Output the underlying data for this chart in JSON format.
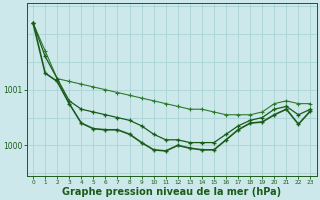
{
  "background_color": "#cce8ea",
  "grid_color": "#aad4d8",
  "line_color_dark": "#1a5c1a",
  "line_color_med": "#2d7a2d",
  "xlabel": "Graphe pression niveau de la mer (hPa)",
  "xlabel_fontsize": 7,
  "ytick_labels": [
    "1000",
    "1001"
  ],
  "ytick_vals": [
    1000.0,
    1001.0
  ],
  "ylim": [
    999.45,
    1002.55
  ],
  "xlim": [
    -0.5,
    23.5
  ],
  "xticks": [
    0,
    1,
    2,
    3,
    4,
    5,
    6,
    7,
    8,
    9,
    10,
    11,
    12,
    13,
    14,
    15,
    16,
    17,
    18,
    19,
    20,
    21,
    22,
    23
  ],
  "hgrid_vals": [
    999.5,
    1000.0,
    1000.5,
    1001.0,
    1001.5,
    1002.0,
    1002.5
  ],
  "series1_x": [
    0,
    1,
    2,
    3,
    4,
    5,
    6,
    7,
    8,
    9,
    10,
    11,
    12,
    13,
    14,
    15,
    16,
    17,
    18,
    19,
    20,
    21,
    22,
    23
  ],
  "series1_y": [
    1002.2,
    1001.7,
    1001.2,
    1001.15,
    1001.1,
    1001.05,
    1001.0,
    1000.95,
    1000.9,
    1000.85,
    1000.8,
    1000.75,
    1000.7,
    1000.65,
    1000.65,
    1000.6,
    1000.55,
    1000.55,
    1000.55,
    1000.6,
    1000.75,
    1000.8,
    1000.75,
    1000.75
  ],
  "series2_x": [
    0,
    1,
    2,
    3,
    4,
    5,
    6,
    7,
    8,
    9,
    10,
    11,
    12,
    13,
    14,
    15,
    16,
    17,
    18,
    19,
    20,
    21,
    22,
    23
  ],
  "series2_y": [
    1002.2,
    1001.6,
    1001.2,
    1000.8,
    1000.65,
    1000.6,
    1000.55,
    1000.5,
    1000.45,
    1000.35,
    1000.2,
    1000.1,
    1000.1,
    1000.05,
    1000.05,
    1000.05,
    1000.2,
    1000.35,
    1000.45,
    1000.5,
    1000.65,
    1000.7,
    1000.55,
    1000.65
  ],
  "series3_x": [
    0,
    1,
    2,
    3,
    4,
    5,
    6,
    7,
    8,
    9,
    10,
    11,
    12,
    13,
    14,
    15,
    16,
    17,
    18,
    19,
    20,
    21,
    22,
    23
  ],
  "series3_y": [
    1002.2,
    1001.3,
    1001.15,
    1000.75,
    1000.4,
    1000.3,
    1000.28,
    1000.28,
    1000.2,
    1000.05,
    999.92,
    999.9,
    1000.0,
    999.95,
    999.92,
    999.92,
    1000.1,
    1000.28,
    1000.4,
    1000.42,
    1000.55,
    1000.65,
    1000.38,
    1000.62
  ]
}
